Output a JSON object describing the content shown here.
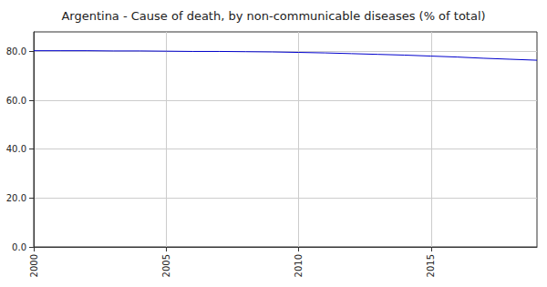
{
  "chart_data": {
    "type": "line",
    "title": "Argentina - Cause of death, by non-communicable diseases (% of total)",
    "x": [
      2000,
      2001,
      2002,
      2003,
      2004,
      2005,
      2006,
      2007,
      2008,
      2009,
      2010,
      2011,
      2012,
      2013,
      2014,
      2015,
      2016,
      2017,
      2018,
      2019
    ],
    "values": [
      80.3,
      80.3,
      80.3,
      80.2,
      80.2,
      80.1,
      80.0,
      80.0,
      79.9,
      79.8,
      79.6,
      79.4,
      79.1,
      78.8,
      78.5,
      78.1,
      77.7,
      77.2,
      76.8,
      76.4
    ],
    "color": "#0000cc",
    "xlim": [
      2000,
      2019
    ],
    "xticks": [
      2000,
      2005,
      2010,
      2015
    ],
    "ylim": [
      0,
      88
    ],
    "yticks": [
      {
        "value": 0,
        "label": "0.0"
      },
      {
        "value": 20,
        "label": "20.0"
      },
      {
        "value": 40,
        "label": "40.0"
      },
      {
        "value": 60,
        "label": "60.0"
      },
      {
        "value": 80,
        "label": "80.0"
      }
    ],
    "grid": true
  }
}
